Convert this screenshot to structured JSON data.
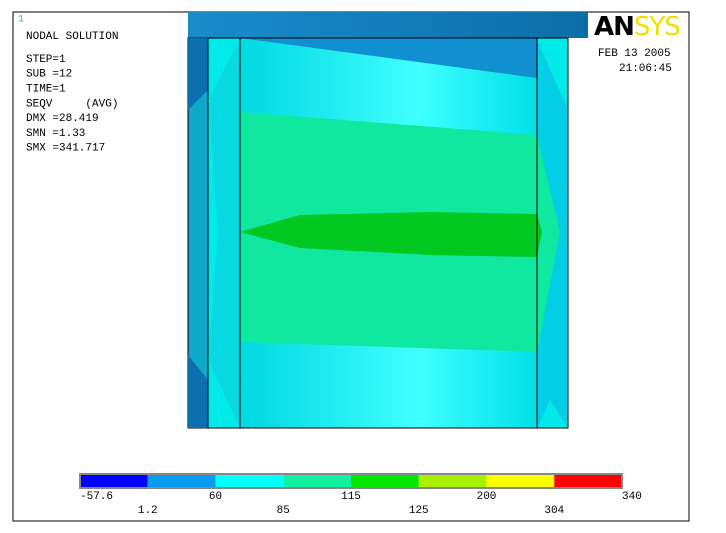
{
  "header": {
    "window_number": "1",
    "title": "NODAL SOLUTION",
    "params": [
      "STEP=1",
      "SUB =12",
      "TIME=1",
      "SEQV     (AVG)",
      "DMX =28.419",
      "SMN =1.33",
      "SMX =341.717"
    ],
    "date": "FEB 13 2005",
    "time": "21:06:45",
    "logo": {
      "left": "AN",
      "right": "SYS"
    }
  },
  "legend": {
    "labels": [
      -57.6,
      1.2,
      60,
      85,
      115,
      125,
      200,
      304,
      340
    ],
    "colors": [
      "#0000ff",
      "#0a9cf0",
      "#00ffff",
      "#10f0a0",
      "#00e800",
      "#a8f000",
      "#ffff00",
      "#ff0000"
    ]
  }
}
